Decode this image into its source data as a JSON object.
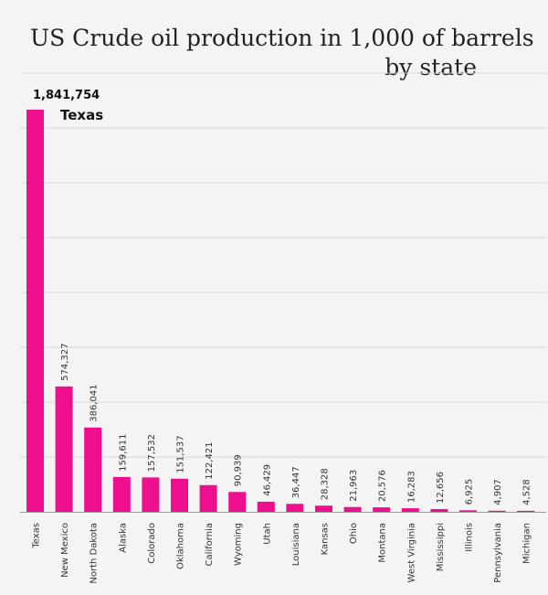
{
  "chart_data": {
    "type": "bar",
    "title_lines": [
      "US Crude oil production in 1,000 of barrels",
      "by state"
    ],
    "categories": [
      "Texas",
      "New Mexico",
      "North Dakota",
      "Alaska",
      "Colorado",
      "Oklahoma",
      "California",
      "Wyoming",
      "Utah",
      "Louisiana",
      "Kansas",
      "Ohio",
      "Montana",
      "West Virginia",
      "Mississippi",
      "Illinois",
      "Pennsylvania",
      "Michigan"
    ],
    "values": [
      1841754,
      574327,
      386041,
      159611,
      157532,
      151537,
      122421,
      90939,
      46429,
      36447,
      28328,
      21963,
      20576,
      16283,
      12656,
      6925,
      4907,
      4528
    ],
    "value_labels": [
      "1,841,754",
      "574,327",
      "386,041",
      "159,611",
      "157,532",
      "151,537",
      "122,421",
      "90,939",
      "46,429",
      "36,447",
      "28,328",
      "21,963",
      "20,576",
      "16,283",
      "12,656",
      "6,925",
      "4,907",
      "4,528"
    ],
    "top_bar_annotation": "Texas",
    "ylim": [
      0,
      1841754
    ],
    "grid": true,
    "colors": {
      "bar": "#ee0f8e",
      "background": "#f4f4f4",
      "grid": "#d6d6d6",
      "axis": "#9a9a9a",
      "text": "#333333"
    }
  }
}
